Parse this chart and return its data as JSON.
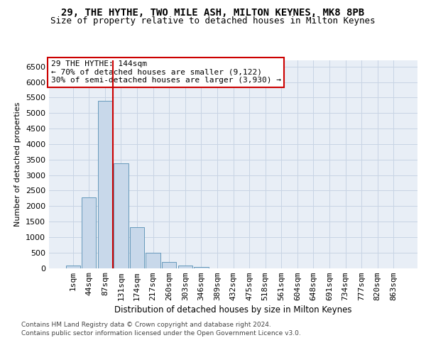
{
  "title_line1": "29, THE HYTHE, TWO MILE ASH, MILTON KEYNES, MK8 8PB",
  "title_line2": "Size of property relative to detached houses in Milton Keynes",
  "xlabel": "Distribution of detached houses by size in Milton Keynes",
  "ylabel": "Number of detached properties",
  "categories": [
    "1sqm",
    "44sqm",
    "87sqm",
    "131sqm",
    "174sqm",
    "217sqm",
    "260sqm",
    "303sqm",
    "346sqm",
    "389sqm",
    "432sqm",
    "475sqm",
    "518sqm",
    "561sqm",
    "604sqm",
    "648sqm",
    "691sqm",
    "734sqm",
    "777sqm",
    "820sqm",
    "863sqm"
  ],
  "values": [
    70,
    2270,
    5400,
    3380,
    1310,
    490,
    185,
    80,
    30,
    0,
    0,
    0,
    0,
    0,
    0,
    0,
    0,
    0,
    0,
    0,
    0
  ],
  "bar_color": "#c8d8ea",
  "bar_edge_color": "#6699bb",
  "vline_color": "#cc0000",
  "vline_x": 2.5,
  "annotation_text": "29 THE HYTHE: 144sqm\n← 70% of detached houses are smaller (9,122)\n30% of semi-detached houses are larger (3,930) →",
  "annotation_box_facecolor": "white",
  "annotation_box_edgecolor": "#cc0000",
  "ylim_max": 6700,
  "yticks": [
    0,
    500,
    1000,
    1500,
    2000,
    2500,
    3000,
    3500,
    4000,
    4500,
    5000,
    5500,
    6000,
    6500
  ],
  "grid_color": "#c8d4e4",
  "bg_color": "#e8eef6",
  "footer_line1": "Contains HM Land Registry data © Crown copyright and database right 2024.",
  "footer_line2": "Contains public sector information licensed under the Open Government Licence v3.0.",
  "title_fontsize": 10,
  "subtitle_fontsize": 9,
  "tick_fontsize": 8,
  "ylabel_fontsize": 8,
  "xlabel_fontsize": 8.5,
  "footer_fontsize": 6.5,
  "annot_fontsize": 8
}
